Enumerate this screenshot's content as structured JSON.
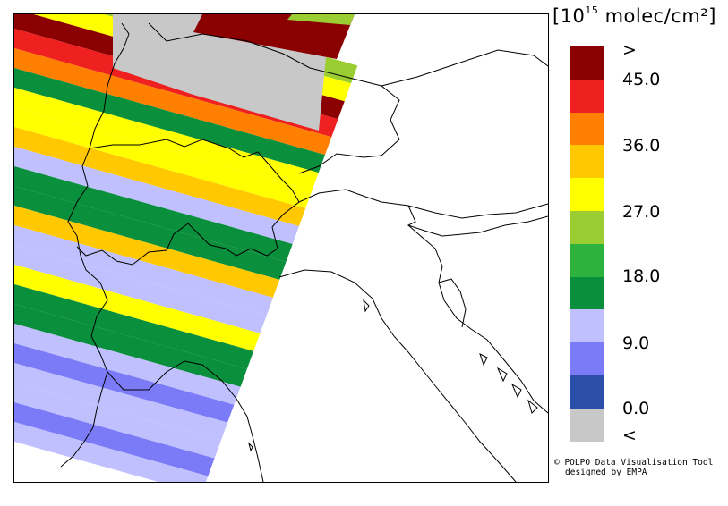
{
  "legend": {
    "title_base": "[10",
    "title_exp": "15",
    "title_unit": " molec/cm²]",
    "colors": [
      "#8b0000",
      "#ee2020",
      "#ff8000",
      "#ffc800",
      "#ffff00",
      "#9acd32",
      "#2db33d",
      "#0a8f3c",
      "#c0c0ff",
      "#7b7bf7",
      "#2b4fa8",
      "#c8c8c8"
    ],
    "ticks": [
      ">",
      "45.0",
      "36.0",
      "27.0",
      "18.0",
      "9.0",
      "0.0",
      "<"
    ]
  },
  "credit": {
    "line1": "© POLPO Data Visualisation Tool",
    "line2": "designed by EMPA"
  },
  "swath_colors": [
    "#8b0000",
    "#ee2020",
    "#ff8000",
    "#ffc800",
    "#ffff00",
    "#9acd32",
    "#2db33d",
    "#0a8f3c",
    "#c0c0ff",
    "#7b7bf7",
    "#2b4fa8",
    "#c8c8c8"
  ]
}
